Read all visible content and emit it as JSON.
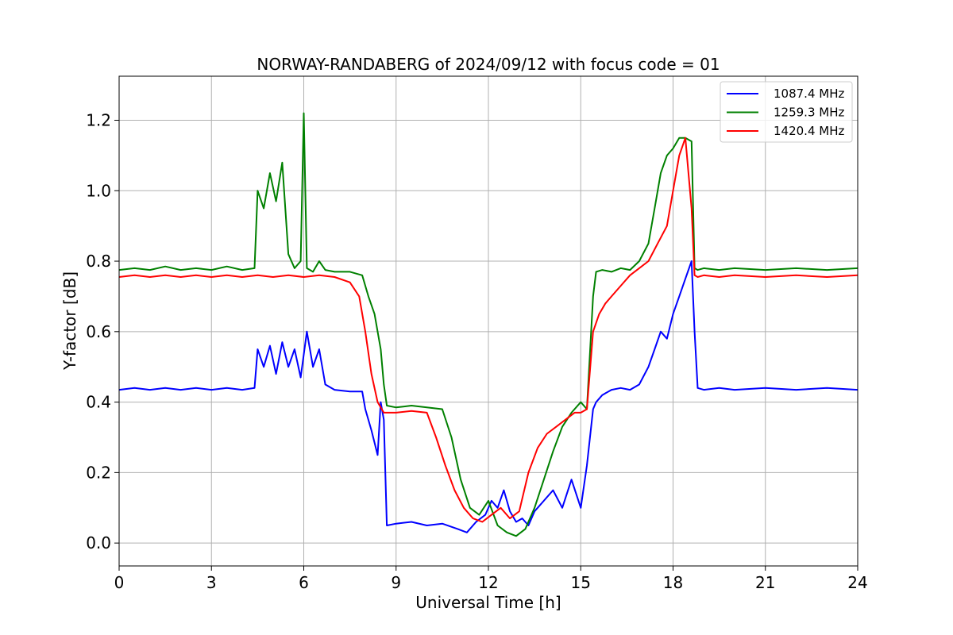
{
  "chart_data": {
    "type": "line",
    "title": "NORWAY-RANDABERG of 2024/09/12 with focus code = 01",
    "xlabel": "Universal Time [h]",
    "ylabel": "Y-factor [dB]",
    "xlim": [
      0,
      24
    ],
    "ylim": [
      -0.065,
      1.325
    ],
    "xticks": [
      0,
      3,
      6,
      9,
      12,
      15,
      18,
      21,
      24
    ],
    "yticks": [
      0.0,
      0.2,
      0.4,
      0.6,
      0.8,
      1.0,
      1.2
    ],
    "grid": true,
    "legend_position": "top-right",
    "series": [
      {
        "name": "1087.4 MHz",
        "color": "#0000ff",
        "x": [
          0,
          0.5,
          1,
          1.5,
          2,
          2.5,
          3,
          3.5,
          4,
          4.4,
          4.5,
          4.7,
          4.9,
          5.1,
          5.3,
          5.5,
          5.7,
          5.9,
          6.1,
          6.3,
          6.5,
          6.7,
          7,
          7.5,
          7.9,
          8.0,
          8.2,
          8.4,
          8.5,
          8.6,
          8.7,
          9,
          9.5,
          10,
          10.5,
          11,
          11.3,
          11.6,
          11.9,
          12.1,
          12.3,
          12.5,
          12.7,
          12.9,
          13.1,
          13.3,
          13.5,
          13.8,
          14.1,
          14.4,
          14.7,
          15.0,
          15.2,
          15.4,
          15.5,
          15.7,
          16,
          16.3,
          16.6,
          16.9,
          17.2,
          17.4,
          17.6,
          17.8,
          18.0,
          18.2,
          18.4,
          18.6,
          18.7,
          18.8,
          19,
          19.5,
          20,
          21,
          22,
          23,
          24
        ],
        "y": [
          0.435,
          0.44,
          0.435,
          0.44,
          0.435,
          0.44,
          0.435,
          0.44,
          0.435,
          0.44,
          0.55,
          0.5,
          0.56,
          0.48,
          0.57,
          0.5,
          0.55,
          0.47,
          0.6,
          0.5,
          0.55,
          0.45,
          0.435,
          0.43,
          0.43,
          0.38,
          0.32,
          0.25,
          0.4,
          0.35,
          0.05,
          0.055,
          0.06,
          0.05,
          0.055,
          0.04,
          0.03,
          0.06,
          0.08,
          0.12,
          0.1,
          0.15,
          0.09,
          0.06,
          0.07,
          0.05,
          0.09,
          0.12,
          0.15,
          0.1,
          0.18,
          0.1,
          0.22,
          0.38,
          0.4,
          0.42,
          0.435,
          0.44,
          0.435,
          0.45,
          0.5,
          0.55,
          0.6,
          0.58,
          0.65,
          0.7,
          0.75,
          0.8,
          0.6,
          0.44,
          0.435,
          0.44,
          0.435,
          0.44,
          0.435,
          0.44,
          0.435
        ]
      },
      {
        "name": "1259.3 MHz",
        "color": "#008000",
        "x": [
          0,
          0.5,
          1,
          1.5,
          2,
          2.5,
          3,
          3.5,
          4,
          4.4,
          4.5,
          4.7,
          4.9,
          5.1,
          5.3,
          5.5,
          5.7,
          5.9,
          6.0,
          6.1,
          6.3,
          6.5,
          6.7,
          7,
          7.5,
          7.9,
          8.1,
          8.3,
          8.5,
          8.6,
          8.7,
          9,
          9.5,
          10,
          10.5,
          10.8,
          11.1,
          11.4,
          11.7,
          12.0,
          12.3,
          12.6,
          12.9,
          13.2,
          13.5,
          13.8,
          14.1,
          14.4,
          14.7,
          15.0,
          15.2,
          15.4,
          15.5,
          15.7,
          16,
          16.3,
          16.6,
          16.9,
          17.2,
          17.4,
          17.6,
          17.8,
          18.0,
          18.2,
          18.4,
          18.6,
          18.7,
          18.8,
          19,
          19.5,
          20,
          21,
          22,
          23,
          24
        ],
        "y": [
          0.775,
          0.78,
          0.775,
          0.785,
          0.775,
          0.78,
          0.775,
          0.785,
          0.775,
          0.78,
          1.0,
          0.95,
          1.05,
          0.97,
          1.08,
          0.82,
          0.78,
          0.8,
          1.22,
          0.78,
          0.77,
          0.8,
          0.775,
          0.77,
          0.77,
          0.76,
          0.7,
          0.65,
          0.55,
          0.45,
          0.39,
          0.385,
          0.39,
          0.385,
          0.38,
          0.3,
          0.18,
          0.1,
          0.08,
          0.12,
          0.05,
          0.03,
          0.02,
          0.04,
          0.1,
          0.18,
          0.26,
          0.33,
          0.37,
          0.4,
          0.38,
          0.7,
          0.77,
          0.775,
          0.77,
          0.78,
          0.775,
          0.8,
          0.85,
          0.95,
          1.05,
          1.1,
          1.12,
          1.15,
          1.15,
          1.14,
          0.78,
          0.775,
          0.78,
          0.775,
          0.78,
          0.775,
          0.78,
          0.775,
          0.78
        ]
      },
      {
        "name": "1420.4 MHz",
        "color": "#ff0000",
        "x": [
          0,
          0.5,
          1,
          1.5,
          2,
          2.5,
          3,
          3.5,
          4,
          4.5,
          5,
          5.5,
          6,
          6.5,
          7,
          7.5,
          7.8,
          8.0,
          8.2,
          8.4,
          8.6,
          8.7,
          9,
          9.5,
          10,
          10.3,
          10.6,
          10.9,
          11.2,
          11.5,
          11.8,
          12.1,
          12.4,
          12.7,
          13.0,
          13.3,
          13.6,
          13.9,
          14.2,
          14.5,
          14.8,
          15.0,
          15.2,
          15.4,
          15.6,
          15.8,
          16.0,
          16.3,
          16.6,
          16.9,
          17.2,
          17.5,
          17.8,
          18.0,
          18.2,
          18.4,
          18.6,
          18.7,
          18.8,
          19,
          19.5,
          20,
          21,
          22,
          23,
          24
        ],
        "y": [
          0.755,
          0.76,
          0.755,
          0.76,
          0.755,
          0.76,
          0.755,
          0.76,
          0.755,
          0.76,
          0.755,
          0.76,
          0.755,
          0.76,
          0.755,
          0.74,
          0.7,
          0.6,
          0.48,
          0.4,
          0.37,
          0.37,
          0.37,
          0.375,
          0.37,
          0.3,
          0.22,
          0.15,
          0.1,
          0.07,
          0.06,
          0.08,
          0.1,
          0.07,
          0.09,
          0.2,
          0.27,
          0.31,
          0.33,
          0.35,
          0.37,
          0.37,
          0.38,
          0.6,
          0.65,
          0.68,
          0.7,
          0.73,
          0.76,
          0.78,
          0.8,
          0.85,
          0.9,
          1.0,
          1.1,
          1.15,
          0.95,
          0.76,
          0.755,
          0.76,
          0.755,
          0.76,
          0.755,
          0.76,
          0.755,
          0.76
        ]
      }
    ]
  }
}
